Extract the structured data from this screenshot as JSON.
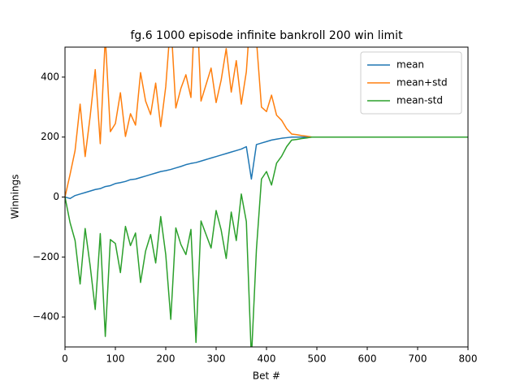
{
  "chart_data": {
    "type": "line",
    "title": "fg.6 1000 episode infinite bankroll 200 win limit",
    "xlabel": "Bet #",
    "ylabel": "Winnings",
    "x": [
      0,
      10,
      20,
      30,
      40,
      50,
      60,
      70,
      80,
      90,
      100,
      110,
      120,
      130,
      140,
      150,
      160,
      170,
      180,
      190,
      200,
      210,
      220,
      230,
      240,
      250,
      260,
      270,
      280,
      290,
      300,
      310,
      320,
      330,
      340,
      350,
      360,
      370,
      380,
      390,
      400,
      410,
      420,
      430,
      440,
      450,
      460,
      470,
      480,
      490,
      500,
      510,
      520,
      530,
      540,
      550,
      560,
      570,
      580,
      590,
      600,
      610,
      620,
      630,
      640,
      650,
      660,
      670,
      680,
      690,
      700,
      710,
      720,
      730,
      740,
      750,
      760,
      770,
      780,
      790,
      800
    ],
    "series": [
      {
        "name": "mean",
        "color": "#1f77b4",
        "values": [
          0,
          -5,
          5,
          10,
          15,
          20,
          25,
          28,
          35,
          38,
          45,
          48,
          52,
          58,
          60,
          65,
          70,
          75,
          80,
          85,
          88,
          92,
          97,
          102,
          108,
          112,
          115,
          120,
          125,
          130,
          135,
          140,
          145,
          150,
          155,
          160,
          168,
          60,
          175,
          180,
          185,
          190,
          193,
          196,
          198,
          200,
          200,
          200,
          200,
          200,
          200,
          200,
          200,
          200,
          200,
          200,
          200,
          200,
          200,
          200,
          200,
          200,
          200,
          200,
          200,
          200,
          200,
          200,
          200,
          200,
          200,
          200,
          200,
          200,
          200,
          200,
          200,
          200,
          200,
          200,
          200
        ]
      },
      {
        "name": "mean+std",
        "color": "#ff7f0e",
        "values": [
          0,
          75,
          155,
          310,
          135,
          270,
          425,
          178,
          535,
          218,
          245,
          348,
          202,
          278,
          240,
          415,
          320,
          275,
          380,
          235,
          368,
          592,
          297,
          362,
          408,
          332,
          715,
          320,
          375,
          430,
          315,
          390,
          495,
          350,
          455,
          310,
          418,
          660,
          525,
          300,
          285,
          340,
          273,
          256,
          228,
          210,
          208,
          205,
          203,
          200,
          200,
          200,
          200,
          200,
          200,
          200,
          200,
          200,
          200,
          200,
          200,
          200,
          200,
          200,
          200,
          200,
          200,
          200,
          200,
          200,
          200,
          200,
          200,
          200,
          200,
          200,
          200,
          200,
          200,
          200,
          200
        ]
      },
      {
        "name": "mean-std",
        "color": "#2ca02c",
        "values": [
          0,
          -85,
          -145,
          -290,
          -105,
          -230,
          -375,
          -122,
          -465,
          -142,
          -155,
          -252,
          -98,
          -162,
          -120,
          -285,
          -180,
          -125,
          -220,
          -65,
          -192,
          -408,
          -103,
          -158,
          -192,
          -108,
          -485,
          -80,
          -125,
          -170,
          -45,
          -110,
          -205,
          -50,
          -145,
          10,
          -82,
          -540,
          -175,
          60,
          85,
          40,
          113,
          136,
          168,
          190,
          192,
          195,
          197,
          200,
          200,
          200,
          200,
          200,
          200,
          200,
          200,
          200,
          200,
          200,
          200,
          200,
          200,
          200,
          200,
          200,
          200,
          200,
          200,
          200,
          200,
          200,
          200,
          200,
          200,
          200,
          200,
          200,
          200,
          200,
          200
        ]
      }
    ],
    "xlim": [
      0,
      800
    ],
    "xticks": [
      0,
      100,
      200,
      300,
      400,
      500,
      600,
      700,
      800
    ],
    "ylim": [
      -500,
      500
    ],
    "yticks": [
      {
        "value": -400,
        "label": "−400"
      },
      {
        "value": -200,
        "label": "−200"
      },
      0,
      200,
      400
    ],
    "legend": "upper right"
  }
}
